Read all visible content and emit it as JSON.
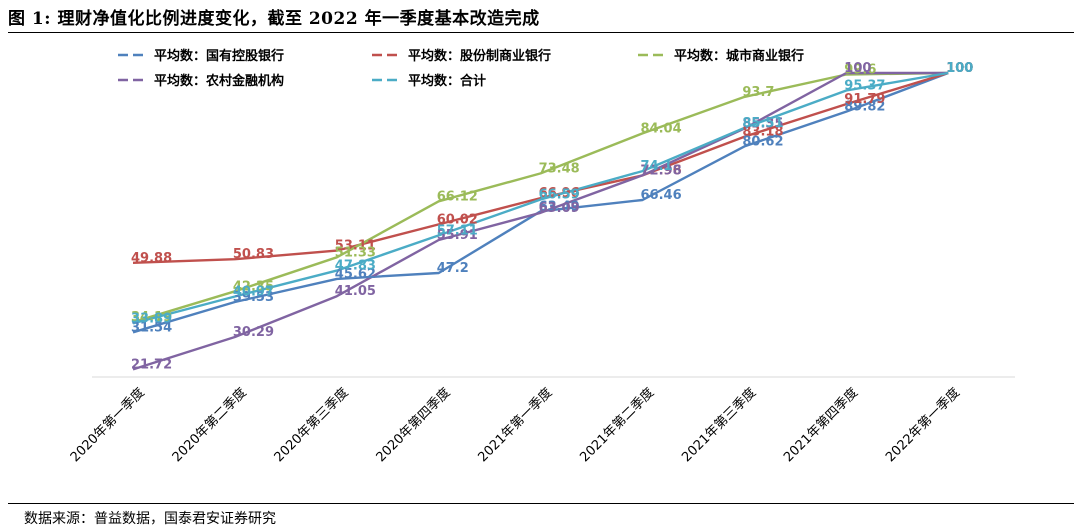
{
  "figure": {
    "title": "图 1:  理财净值化比例进度变化，截至 2022 年一季度基本改造完成",
    "source": "数据来源：普益数据，国泰君安证券研究"
  },
  "chart_data": {
    "type": "line",
    "categories": [
      "2020年第一季度",
      "2020年第二季度",
      "2020年第三季度",
      "2020年第四季度",
      "2021年第一季度",
      "2021年第二季度",
      "2021年第三季度",
      "2021年第四季度",
      "2022年第一季度"
    ],
    "ylim": [
      0,
      100
    ],
    "grid": false,
    "legend": "top-left",
    "series": [
      {
        "name": "平均数：国有控股银行",
        "color": "#4F81BD",
        "values": [
          31.54,
          39.53,
          45.62,
          47.2,
          63.49,
          66.46,
          80.62,
          89.82,
          100
        ]
      },
      {
        "name": "平均数：股份制商业银行",
        "color": "#C0504D",
        "values": [
          49.88,
          50.83,
          53.11,
          60.02,
          66.96,
          72.96,
          83.18,
          91.79,
          100
        ]
      },
      {
        "name": "平均数：城市商业银行",
        "color": "#9BBB59",
        "values": [
          34.19,
          42.35,
          51.33,
          66.12,
          73.48,
          84.04,
          93.7,
          99.6,
          100
        ]
      },
      {
        "name": "平均数：农村金融机构",
        "color": "#8064A2",
        "values": [
          21.72,
          30.29,
          41.05,
          55.91,
          63.09,
          72.98,
          85.35,
          100,
          100
        ]
      },
      {
        "name": "平均数：合计",
        "color": "#4BACC6",
        "values": [
          33.89,
          40.97,
          47.83,
          57.11,
          66.59,
          74.1,
          85.51,
          95.37,
          100
        ]
      }
    ]
  }
}
